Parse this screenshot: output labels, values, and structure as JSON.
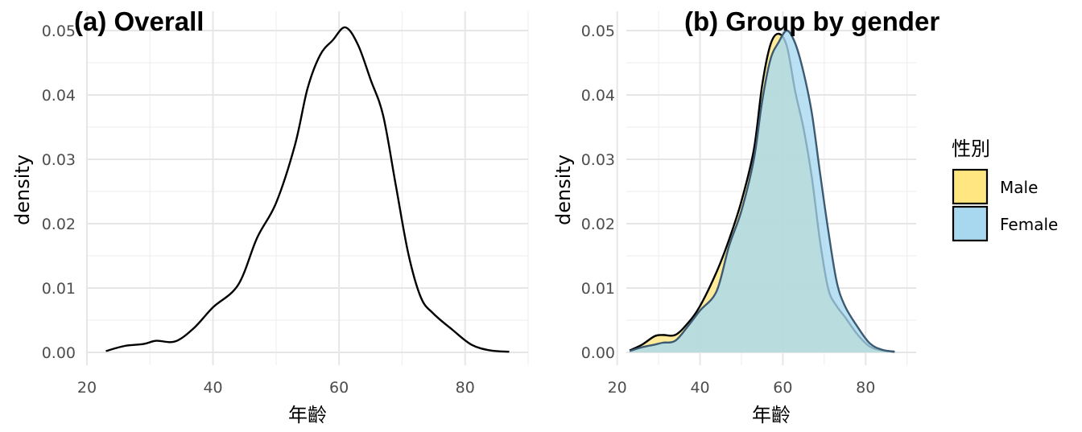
{
  "chart_data": [
    {
      "type": "area",
      "title": "(a) Overall",
      "xlabel": "年齡",
      "ylabel": "density",
      "xlim": [
        20,
        90
      ],
      "ylim": [
        0,
        0.05
      ],
      "xticks": [
        "20",
        "40",
        "60",
        "80"
      ],
      "yticks": [
        "0.00",
        "0.01",
        "0.02",
        "0.03",
        "0.04",
        "0.05"
      ],
      "grid": true,
      "series": [
        {
          "x": [
            23,
            26,
            29,
            31,
            34,
            37,
            40,
            44,
            47,
            50,
            53,
            55,
            57,
            59,
            61,
            63,
            65,
            67,
            69,
            71,
            73,
            75,
            78,
            81,
            84,
            87
          ],
          "y": [
            0.0002,
            0.001,
            0.0013,
            0.0018,
            0.0017,
            0.0038,
            0.007,
            0.0105,
            0.0178,
            0.0232,
            0.0322,
            0.041,
            0.0462,
            0.0485,
            0.0505,
            0.0478,
            0.0424,
            0.0368,
            0.026,
            0.0153,
            0.0085,
            0.006,
            0.0035,
            0.0012,
            0.0003,
            0.0001
          ],
          "color": "#000000"
        }
      ]
    },
    {
      "type": "area",
      "title": "(b) Group by gender",
      "xlabel": "年齡",
      "ylabel": "density",
      "xlim": [
        20,
        90
      ],
      "ylim": [
        0,
        0.05
      ],
      "xticks": [
        "20",
        "40",
        "60",
        "80"
      ],
      "yticks": [
        "0.00",
        "0.01",
        "0.02",
        "0.03",
        "0.04",
        "0.05"
      ],
      "grid": true,
      "legend": {
        "title": "性別",
        "position": "right"
      },
      "series": [
        {
          "name": "Male",
          "color": "#FFE680",
          "x": [
            23,
            26,
            29,
            31,
            34,
            37,
            40,
            44,
            47,
            50,
            53,
            55,
            57,
            59,
            61,
            63,
            65,
            67,
            69,
            71,
            73,
            75,
            78,
            81,
            84,
            87
          ],
          "y": [
            0.0003,
            0.0012,
            0.0025,
            0.0027,
            0.0027,
            0.0045,
            0.0072,
            0.0125,
            0.0175,
            0.0235,
            0.0315,
            0.0415,
            0.0478,
            0.0495,
            0.0475,
            0.0405,
            0.0348,
            0.0272,
            0.0172,
            0.0098,
            0.0072,
            0.0055,
            0.0028,
            0.0009,
            0.0003,
            0.0001
          ]
        },
        {
          "name": "Female",
          "color": "#A8D8F0",
          "x": [
            23,
            26,
            29,
            31,
            34,
            37,
            40,
            44,
            47,
            50,
            53,
            55,
            57,
            59,
            61,
            63,
            65,
            67,
            69,
            71,
            73,
            75,
            78,
            81,
            84,
            87
          ],
          "y": [
            0.0002,
            0.0008,
            0.0012,
            0.0015,
            0.0018,
            0.004,
            0.0065,
            0.0095,
            0.0165,
            0.022,
            0.03,
            0.039,
            0.0455,
            0.0482,
            0.05,
            0.048,
            0.0435,
            0.0372,
            0.0278,
            0.0188,
            0.011,
            0.0072,
            0.004,
            0.0014,
            0.0004,
            0.0001
          ]
        }
      ]
    }
  ]
}
